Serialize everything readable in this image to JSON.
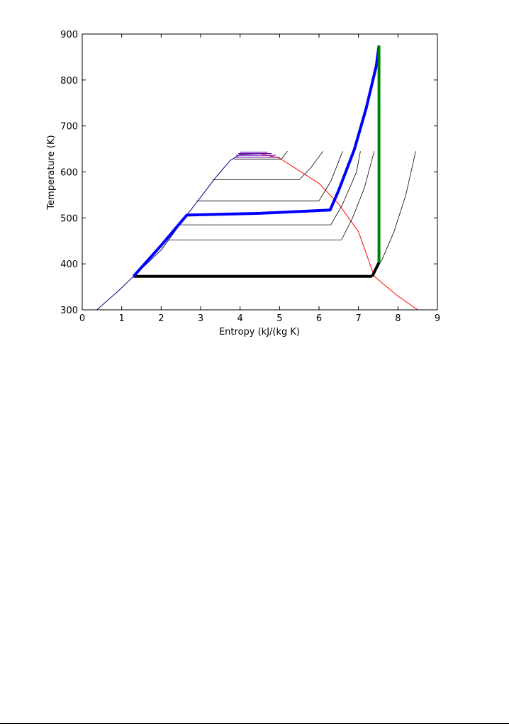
{
  "chart_data": {
    "type": "line",
    "title": "",
    "xlabel": "Entropy (kJ/(kg K)",
    "ylabel": "Temperature (K)",
    "xlim": [
      0,
      9
    ],
    "ylim": [
      300,
      900
    ],
    "xticks": [
      "0",
      "1",
      "2",
      "3",
      "4",
      "5",
      "6",
      "7",
      "8",
      "9"
    ],
    "yticks": [
      "300",
      "400",
      "500",
      "600",
      "700",
      "800",
      "900"
    ],
    "grid": false,
    "legend": "none",
    "colors": {
      "dome": "#ff0000",
      "isobar": "#000000",
      "liquid_line": "#000080",
      "near_critical": "#6a0dad",
      "cycle_high_pressure": "#0000ff",
      "cycle_turbine": "#008000",
      "cycle_low_pressure": "#000000"
    },
    "saturation_dome": [
      [
        0.37,
        300
      ],
      [
        0.9,
        340
      ],
      [
        1.3,
        373
      ],
      [
        2.0,
        430
      ],
      [
        2.65,
        506
      ],
      [
        3.0,
        545
      ],
      [
        3.4,
        590
      ],
      [
        3.75,
        625
      ],
      [
        4.0,
        638
      ],
      [
        4.5,
        640
      ],
      [
        5.0,
        630
      ],
      [
        5.4,
        608
      ],
      [
        6.0,
        575
      ],
      [
        6.5,
        530
      ],
      [
        7.0,
        470
      ],
      [
        7.4,
        373
      ],
      [
        8.0,
        330
      ],
      [
        8.5,
        300
      ]
    ],
    "isobars": [
      {
        "sat_T": 373,
        "liquid_s": 1.3,
        "vapor_s": 7.35,
        "superheat": [
          [
            7.35,
            373
          ],
          [
            7.6,
            410
          ],
          [
            7.9,
            470
          ],
          [
            8.2,
            550
          ],
          [
            8.45,
            645
          ]
        ]
      },
      {
        "sat_T": 452,
        "liquid_s": 2.15,
        "vapor_s": 6.57,
        "superheat": [
          [
            6.57,
            452
          ],
          [
            6.85,
            500
          ],
          [
            7.15,
            565
          ],
          [
            7.4,
            645
          ]
        ]
      },
      {
        "sat_T": 485,
        "liquid_s": 2.4,
        "vapor_s": 6.3,
        "superheat": [
          [
            6.3,
            485
          ],
          [
            6.6,
            530
          ],
          [
            6.95,
            600
          ],
          [
            7.05,
            645
          ]
        ]
      },
      {
        "sat_T": 537,
        "liquid_s": 2.9,
        "vapor_s": 6.0,
        "superheat": [
          [
            6.0,
            537
          ],
          [
            6.3,
            580
          ],
          [
            6.6,
            645
          ]
        ]
      },
      {
        "sat_T": 583,
        "liquid_s": 3.3,
        "vapor_s": 5.5,
        "superheat": [
          [
            5.5,
            583
          ],
          [
            5.8,
            610
          ],
          [
            6.1,
            645
          ]
        ]
      },
      {
        "sat_T": 628,
        "liquid_s": 3.85,
        "vapor_s": 5.05,
        "superheat": [
          [
            5.05,
            628
          ],
          [
            5.2,
            645
          ]
        ]
      }
    ],
    "near_critical_lines": [
      [
        [
          3.85,
          632
        ],
        [
          5.0,
          632
        ]
      ],
      [
        [
          3.9,
          636
        ],
        [
          4.9,
          636
        ]
      ],
      [
        [
          3.95,
          640
        ],
        [
          4.8,
          640
        ]
      ],
      [
        [
          4.0,
          643
        ],
        [
          4.7,
          643
        ]
      ]
    ],
    "cycle": {
      "heating": [
        [
          1.3,
          373
        ],
        [
          2.0,
          440
        ],
        [
          2.65,
          506
        ],
        [
          4.5,
          510
        ],
        [
          6.28,
          517
        ],
        [
          6.5,
          560
        ],
        [
          6.9,
          650
        ],
        [
          7.2,
          740
        ],
        [
          7.45,
          830
        ],
        [
          7.52,
          875
        ]
      ],
      "turbine": [
        [
          7.52,
          875
        ],
        [
          7.52,
          403
        ]
      ],
      "exhaust": [
        [
          7.52,
          403
        ],
        [
          7.35,
          373
        ]
      ],
      "condensation": [
        [
          7.35,
          373
        ],
        [
          1.3,
          373
        ]
      ]
    }
  }
}
